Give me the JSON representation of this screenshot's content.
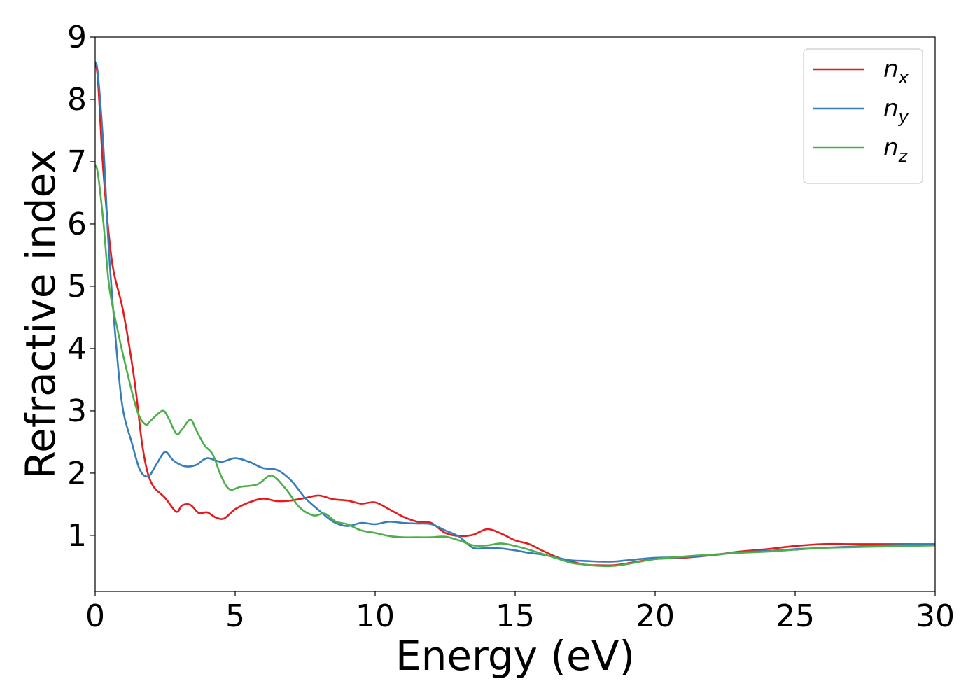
{
  "chart_data": {
    "type": "line",
    "xlabel": "Energy (eV)",
    "ylabel": "Refractive index",
    "xlim": [
      0,
      30
    ],
    "ylim": [
      0.1,
      9
    ],
    "xticks": [
      "0",
      "5",
      "10",
      "15",
      "20",
      "25",
      "30"
    ],
    "yticks": [
      "1",
      "2",
      "3",
      "4",
      "5",
      "6",
      "7",
      "8",
      "9"
    ],
    "grid": false,
    "legend_position": "top-right",
    "series": [
      {
        "name": "n_x",
        "label_base": "n",
        "label_sub": "x",
        "color": "#e41a1c",
        "x": [
          0,
          0.1,
          0.3,
          0.6,
          1.0,
          1.4,
          1.7,
          2.0,
          2.5,
          2.9,
          3.1,
          3.4,
          3.7,
          4.0,
          4.3,
          4.6,
          5.0,
          5.5,
          6.0,
          6.5,
          7.0,
          7.5,
          8.0,
          8.5,
          9.0,
          9.5,
          10.0,
          10.5,
          11.0,
          11.5,
          12.0,
          12.5,
          13.0,
          13.5,
          14.0,
          14.5,
          15.0,
          15.5,
          16.0,
          16.5,
          17.0,
          17.5,
          18.0,
          18.5,
          19.0,
          20.0,
          21.0,
          22.0,
          23.0,
          24.0,
          25.0,
          26.0,
          27.0,
          28.0,
          29.0,
          30.0
        ],
        "y": [
          8.6,
          8.3,
          6.8,
          5.4,
          4.6,
          3.5,
          2.4,
          1.85,
          1.6,
          1.38,
          1.48,
          1.49,
          1.36,
          1.37,
          1.29,
          1.27,
          1.42,
          1.53,
          1.59,
          1.55,
          1.56,
          1.6,
          1.64,
          1.58,
          1.56,
          1.51,
          1.53,
          1.42,
          1.3,
          1.22,
          1.2,
          1.04,
          0.99,
          1.01,
          1.1,
          1.03,
          0.92,
          0.86,
          0.75,
          0.65,
          0.58,
          0.53,
          0.52,
          0.52,
          0.55,
          0.62,
          0.64,
          0.68,
          0.74,
          0.78,
          0.83,
          0.86,
          0.86,
          0.86,
          0.86,
          0.86
        ]
      },
      {
        "name": "n_y",
        "label_base": "n",
        "label_sub": "y",
        "color": "#377eb8",
        "x": [
          0,
          0.1,
          0.3,
          0.5,
          0.8,
          1.0,
          1.3,
          1.6,
          1.9,
          2.2,
          2.5,
          2.8,
          3.2,
          3.6,
          4.0,
          4.5,
          5.0,
          5.5,
          6.0,
          6.5,
          7.0,
          7.5,
          8.0,
          8.5,
          9.0,
          9.5,
          10.0,
          10.5,
          11.0,
          11.5,
          12.0,
          12.5,
          13.0,
          13.5,
          14.0,
          14.5,
          15.0,
          15.5,
          16.0,
          16.5,
          17.0,
          17.5,
          18.0,
          18.5,
          19.0,
          20.0,
          21.0,
          22.0,
          23.0,
          24.0,
          25.0,
          26.0,
          27.0,
          28.0,
          29.0,
          30.0
        ],
        "y": [
          8.6,
          8.4,
          7.2,
          5.5,
          3.8,
          3.0,
          2.5,
          2.05,
          1.95,
          2.15,
          2.34,
          2.2,
          2.11,
          2.13,
          2.24,
          2.18,
          2.24,
          2.18,
          2.08,
          2.05,
          1.88,
          1.6,
          1.4,
          1.22,
          1.15,
          1.2,
          1.18,
          1.22,
          1.2,
          1.19,
          1.18,
          1.08,
          0.98,
          0.8,
          0.8,
          0.79,
          0.76,
          0.72,
          0.69,
          0.64,
          0.6,
          0.59,
          0.58,
          0.58,
          0.6,
          0.64,
          0.65,
          0.68,
          0.73,
          0.75,
          0.78,
          0.8,
          0.82,
          0.84,
          0.85,
          0.86
        ]
      },
      {
        "name": "n_z",
        "label_base": "n",
        "label_sub": "z",
        "color": "#4daf4a",
        "x": [
          0,
          0.1,
          0.3,
          0.5,
          0.8,
          1.1,
          1.5,
          1.8,
          2.0,
          2.4,
          2.6,
          2.9,
          3.1,
          3.4,
          3.6,
          3.9,
          4.2,
          4.5,
          4.8,
          5.2,
          5.8,
          6.3,
          6.8,
          7.3,
          7.8,
          8.2,
          8.6,
          9.0,
          9.5,
          10.0,
          10.5,
          11.0,
          11.5,
          12.0,
          12.5,
          13.0,
          13.5,
          14.0,
          14.5,
          15.0,
          15.5,
          16.0,
          16.5,
          17.0,
          17.5,
          18.0,
          18.5,
          19.0,
          20.0,
          21.0,
          22.0,
          23.0,
          24.0,
          25.0,
          26.0,
          27.0,
          28.0,
          29.0,
          30.0
        ],
        "y": [
          6.95,
          6.8,
          6.0,
          5.0,
          4.3,
          3.7,
          3.0,
          2.78,
          2.85,
          3.0,
          2.9,
          2.63,
          2.7,
          2.86,
          2.7,
          2.45,
          2.3,
          1.95,
          1.74,
          1.78,
          1.82,
          1.96,
          1.75,
          1.45,
          1.32,
          1.35,
          1.22,
          1.18,
          1.08,
          1.04,
          0.99,
          0.97,
          0.97,
          0.97,
          0.98,
          0.92,
          0.84,
          0.84,
          0.87,
          0.83,
          0.77,
          0.7,
          0.63,
          0.56,
          0.53,
          0.51,
          0.51,
          0.54,
          0.62,
          0.66,
          0.69,
          0.72,
          0.74,
          0.77,
          0.8,
          0.81,
          0.82,
          0.83,
          0.84
        ]
      }
    ]
  }
}
